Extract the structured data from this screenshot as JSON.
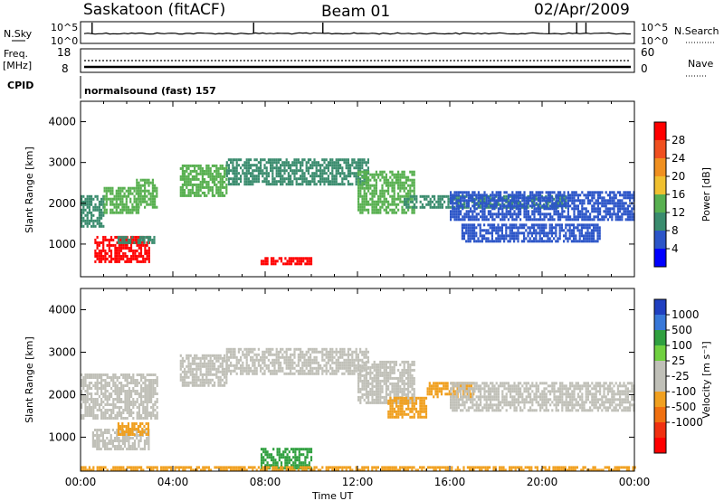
{
  "header": {
    "station": "Saskatoon (fitACF)",
    "beam": "Beam 01",
    "date": "02/Apr/2009"
  },
  "top_panels": {
    "nsky_label": "N.Sky",
    "nsky_ticks": [
      "10^5",
      "10^0"
    ],
    "nsearch_label": "N.Search",
    "nsearch_ticks": [
      "10^5",
      "10^0"
    ],
    "freq_label": "Freq.",
    "freq_unit": "[MHz]",
    "freq_ticks": [
      "18",
      "8"
    ],
    "nave_label": "Nave",
    "nave_ticks": [
      "60",
      "0"
    ],
    "cpid_label": "CPID",
    "cpid_text": "normalsound (fast) 157"
  },
  "colors": {
    "power_scale": [
      "#0000ff",
      "#2c55c8",
      "#3a8c6e",
      "#58b050",
      "#f0c030",
      "#f09020",
      "#f05020",
      "#ff0000"
    ],
    "velocity_scale": [
      "#2040c0",
      "#3878d8",
      "#30a040",
      "#70d040",
      "#c0c0b8",
      "#c0c0b8",
      "#f0a020",
      "#f07010",
      "#f03010",
      "#ff0000"
    ]
  },
  "chart_data": [
    {
      "type": "heatmap",
      "name": "power",
      "ylabel": "Slant Range [km]",
      "xlabel": "",
      "ylim": [
        200,
        4500
      ],
      "yticks": [
        "1000",
        "2000",
        "3000",
        "4000"
      ],
      "xlim": [
        0,
        24
      ],
      "colorbar_label": "Power [dB]",
      "colorbar_ticks": [
        "4",
        "8",
        "12",
        "16",
        "20",
        "24",
        "28"
      ],
      "colorbar_range": [
        0,
        32
      ],
      "regions": [
        {
          "x0": 0.0,
          "x1": 1.0,
          "y0": 1450,
          "y1": 2200,
          "level": 8
        },
        {
          "x0": 1.0,
          "x1": 2.5,
          "y0": 1800,
          "y1": 2400,
          "level": 14
        },
        {
          "x0": 2.4,
          "x1": 3.3,
          "y0": 1900,
          "y1": 2600,
          "level": 12
        },
        {
          "x0": 0.6,
          "x1": 3.0,
          "y0": 600,
          "y1": 1200,
          "level": 28
        },
        {
          "x0": 1.6,
          "x1": 3.2,
          "y0": 1050,
          "y1": 1200,
          "level": 10
        },
        {
          "x0": 4.3,
          "x1": 6.3,
          "y0": 2200,
          "y1": 2950,
          "level": 14
        },
        {
          "x0": 6.3,
          "x1": 12.5,
          "y0": 2500,
          "y1": 3100,
          "level": 8
        },
        {
          "x0": 12.0,
          "x1": 14.5,
          "y0": 1800,
          "y1": 2800,
          "level": 12
        },
        {
          "x0": 14.0,
          "x1": 21.0,
          "y0": 1900,
          "y1": 2200,
          "level": 10
        },
        {
          "x0": 16.0,
          "x1": 24.0,
          "y0": 1600,
          "y1": 2300,
          "level": 6
        },
        {
          "x0": 16.5,
          "x1": 22.5,
          "y0": 1100,
          "y1": 1500,
          "level": 6
        },
        {
          "x0": 7.8,
          "x1": 10.0,
          "y0": 530,
          "y1": 680,
          "level": 28
        }
      ]
    },
    {
      "type": "heatmap",
      "name": "velocity",
      "ylabel": "Slant Range [km]",
      "xlabel": "Time UT",
      "ylim": [
        200,
        4500
      ],
      "yticks": [
        "1000",
        "2000",
        "3000",
        "4000"
      ],
      "xlim": [
        0,
        24
      ],
      "xticks": [
        "00:00",
        "04:00",
        "08:00",
        "12:00",
        "16:00",
        "20:00",
        "00:00"
      ],
      "colorbar_label": "Velocity [m s⁻¹]",
      "colorbar_ticks": [
        "1000",
        "500",
        "100",
        "25",
        "-25",
        "-100",
        "-500",
        "-1000"
      ],
      "regions": [
        {
          "x0": 0.0,
          "x1": 3.3,
          "y0": 1450,
          "y1": 2500,
          "velocity": 0
        },
        {
          "x0": 0.5,
          "x1": 3.0,
          "y0": 700,
          "y1": 1200,
          "velocity": 0
        },
        {
          "x0": 1.6,
          "x1": 2.9,
          "y0": 1050,
          "y1": 1350,
          "velocity": -150
        },
        {
          "x0": 4.3,
          "x1": 6.3,
          "y0": 2200,
          "y1": 2950,
          "velocity": 0
        },
        {
          "x0": 6.3,
          "x1": 12.5,
          "y0": 2500,
          "y1": 3100,
          "velocity": 0
        },
        {
          "x0": 12.0,
          "x1": 14.5,
          "y0": 1800,
          "y1": 2800,
          "velocity": 0
        },
        {
          "x0": 13.3,
          "x1": 15.0,
          "y0": 1500,
          "y1": 1950,
          "velocity": -150
        },
        {
          "x0": 15.0,
          "x1": 17.0,
          "y0": 1950,
          "y1": 2300,
          "velocity": -200
        },
        {
          "x0": 16.0,
          "x1": 24.0,
          "y0": 1600,
          "y1": 2300,
          "velocity": 0
        },
        {
          "x0": 7.8,
          "x1": 10.0,
          "y0": 300,
          "y1": 750,
          "velocity": 200
        },
        {
          "x0": 0.0,
          "x1": 24.0,
          "y0": 200,
          "y1": 320,
          "velocity": -150
        }
      ]
    }
  ]
}
